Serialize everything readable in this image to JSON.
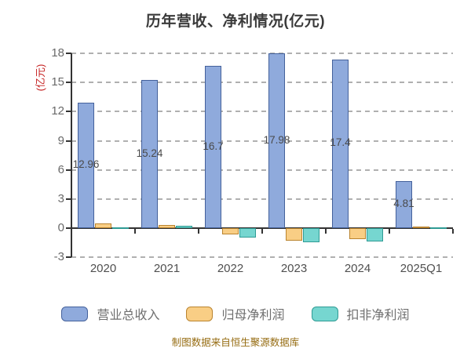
{
  "title": "历年营收、净利情况(亿元)",
  "watermark": "制图数据来自恒生聚源数据库",
  "chart_data": {
    "type": "bar",
    "title": "历年营收、净利情况(亿元)",
    "ylabel": "(亿元)",
    "xlabel": "",
    "categories": [
      "2020",
      "2021",
      "2022",
      "2023",
      "2024",
      "2025Q1"
    ],
    "series": [
      {
        "name": "营业总收入",
        "fill": "#8FAADC",
        "border": "#44619B",
        "values": [
          12.96,
          15.24,
          16.7,
          17.98,
          17.4,
          4.81
        ],
        "labels": [
          "12.96",
          "15.24",
          "16.7",
          "17.98",
          "17.4",
          "4.81"
        ],
        "show_labels": true
      },
      {
        "name": "归母净利润",
        "fill": "#F9CE85",
        "border": "#BA842F",
        "values": [
          0.45,
          0.33,
          -0.65,
          -1.3,
          -1.1,
          0.15
        ],
        "show_labels": false
      },
      {
        "name": "扣非净利润",
        "fill": "#76D6D0",
        "border": "#2F9B94",
        "values": [
          0.05,
          0.26,
          -0.95,
          -1.45,
          -1.4,
          0.05
        ],
        "show_labels": false
      }
    ],
    "ylim": [
      -3,
      18
    ],
    "yticks": [
      18,
      15,
      12,
      9,
      6,
      3,
      0,
      -3
    ],
    "grid": "horizontal-dashed",
    "legend_position": "bottom",
    "colors": {
      "axis": "#333333",
      "gridline": "#b0b0b0",
      "title": "#3a3a3a",
      "ylabel_text": "#c41f1f",
      "y_tick_label": "#6a6a6a",
      "x_tick_label": "#4f4f4f",
      "value_label": "#4a4a4a",
      "legend_text": "#6f6f6f",
      "watermark": "#966c12",
      "background": "#ffffff"
    }
  }
}
